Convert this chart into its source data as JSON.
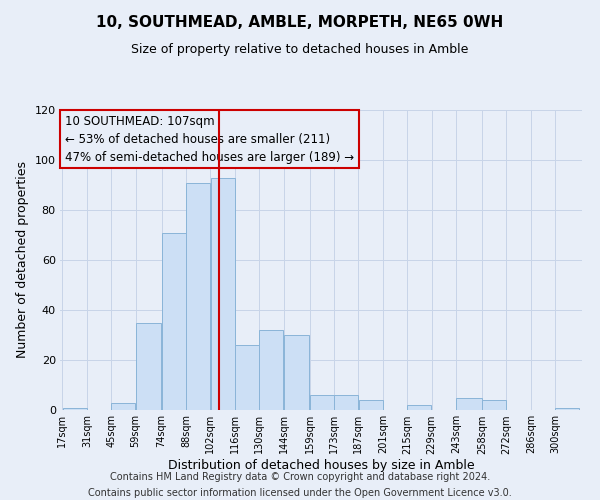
{
  "title": "10, SOUTHMEAD, AMBLE, MORPETH, NE65 0WH",
  "subtitle": "Size of property relative to detached houses in Amble",
  "xlabel": "Distribution of detached houses by size in Amble",
  "ylabel": "Number of detached properties",
  "bin_labels": [
    "17sqm",
    "31sqm",
    "45sqm",
    "59sqm",
    "74sqm",
    "88sqm",
    "102sqm",
    "116sqm",
    "130sqm",
    "144sqm",
    "159sqm",
    "173sqm",
    "187sqm",
    "201sqm",
    "215sqm",
    "229sqm",
    "243sqm",
    "258sqm",
    "272sqm",
    "286sqm",
    "300sqm"
  ],
  "bar_heights": [
    1,
    0,
    3,
    35,
    71,
    91,
    93,
    26,
    32,
    30,
    6,
    6,
    4,
    0,
    2,
    0,
    5,
    4,
    0,
    0,
    1
  ],
  "bar_color": "#ccdff5",
  "bar_edge_color": "#8ab4d8",
  "grid_color": "#c8d4e8",
  "background_color": "#e8eef8",
  "vline_x_idx": 6,
  "vline_color": "#cc0000",
  "annotation_line1": "10 SOUTHMEAD: 107sqm",
  "annotation_line2": "← 53% of detached houses are smaller (211)",
  "annotation_line3": "47% of semi-detached houses are larger (189) →",
  "box_edge_color": "#cc0000",
  "ylim": [
    0,
    120
  ],
  "yticks": [
    0,
    20,
    40,
    60,
    80,
    100,
    120
  ],
  "footnote1": "Contains HM Land Registry data © Crown copyright and database right 2024.",
  "footnote2": "Contains public sector information licensed under the Open Government Licence v3.0."
}
